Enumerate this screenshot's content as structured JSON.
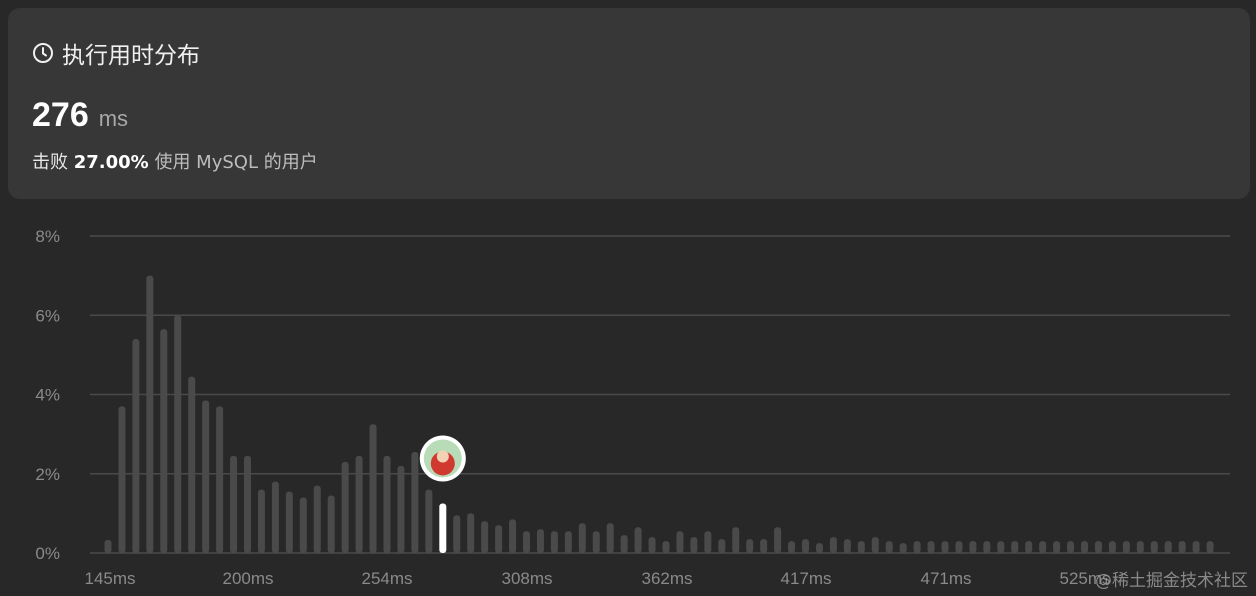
{
  "header": {
    "title": "执行用时分布",
    "icon": "clock-icon",
    "runtime_value": "276",
    "runtime_unit": "ms",
    "beat_prefix": "击败",
    "beat_percent": "27.00%",
    "beat_suffix": "使用 MySQL 的用户"
  },
  "watermark": "@稀土掘金技术社区",
  "chart_data": {
    "type": "bar",
    "xlabel": "",
    "ylabel": "",
    "ylim": [
      0,
      8
    ],
    "y_ticks": [
      "0%",
      "2%",
      "4%",
      "6%",
      "8%"
    ],
    "y_tick_values": [
      0,
      2,
      4,
      6,
      8
    ],
    "x_ticks": [
      "145ms",
      "200ms",
      "254ms",
      "308ms",
      "362ms",
      "417ms",
      "471ms",
      "525ms"
    ],
    "grid": true,
    "highlight_index": 24,
    "colors": {
      "bar": "#4a4a4a",
      "highlight": "#ffffff",
      "grid": "#4a4a4a"
    },
    "values": [
      0.33,
      3.7,
      5.4,
      7.0,
      5.65,
      6.0,
      4.45,
      3.85,
      3.7,
      2.45,
      2.45,
      1.6,
      1.8,
      1.55,
      1.4,
      1.7,
      1.45,
      2.3,
      2.45,
      3.25,
      2.45,
      2.2,
      2.55,
      1.6,
      1.25,
      0.95,
      1.0,
      0.8,
      0.7,
      0.85,
      0.55,
      0.6,
      0.55,
      0.55,
      0.75,
      0.55,
      0.75,
      0.45,
      0.65,
      0.4,
      0.3,
      0.55,
      0.4,
      0.55,
      0.35,
      0.65,
      0.35,
      0.35,
      0.65,
      0.3,
      0.35,
      0.25,
      0.4,
      0.35,
      0.3,
      0.4,
      0.3,
      0.25,
      0.3,
      0.3,
      0.3,
      0.3,
      0.3,
      0.3,
      0.3,
      0.3,
      0.3,
      0.3,
      0.3,
      0.3,
      0.3,
      0.3,
      0.3,
      0.3,
      0.3,
      0.3,
      0.3,
      0.3,
      0.3,
      0.3
    ]
  }
}
